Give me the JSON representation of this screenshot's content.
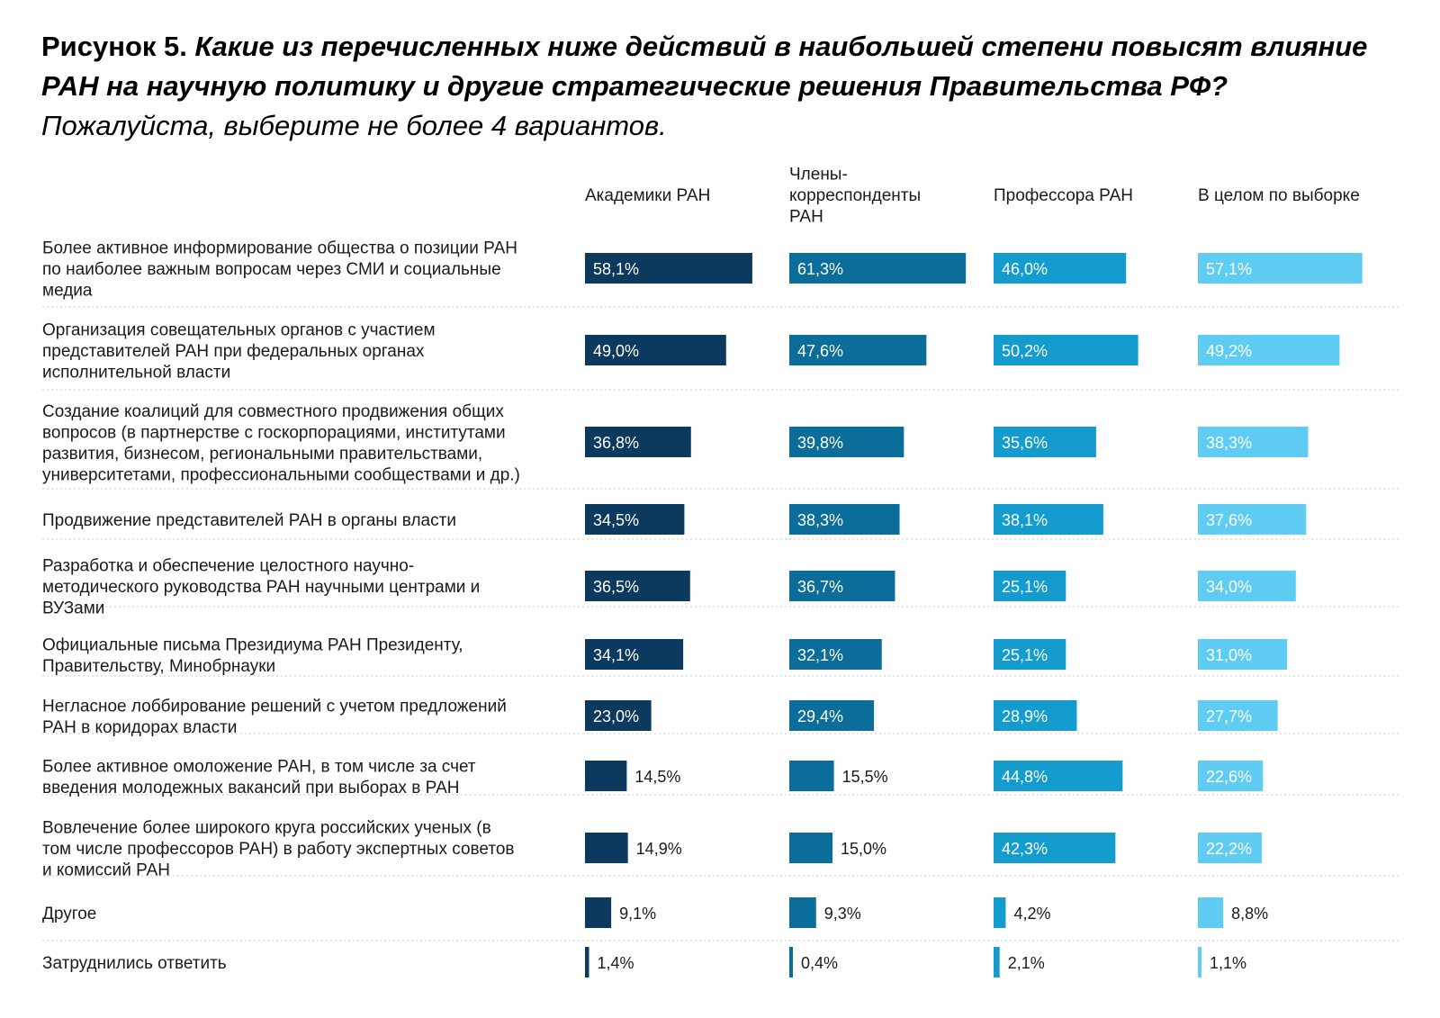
{
  "title": {
    "lead": "Рисунок 5.",
    "question": "Какие из перечисленных ниже действий в наибольшей степени повысят влияние РАН на научную политику и другие стратегические решения Правительства РФ?",
    "note": "Пожалуйста, выберите не более 4 вариантов."
  },
  "chart_data": {
    "type": "bar",
    "orientation": "horizontal-small-multiples",
    "unit": "%",
    "series": [
      {
        "name": "Академики РАН",
        "color": "#0b3a5e",
        "values": [
          58.1,
          49.0,
          36.8,
          34.5,
          36.5,
          34.1,
          23.0,
          14.5,
          14.9,
          9.1,
          1.4
        ]
      },
      {
        "name": "Члены-корреспонденты РАН",
        "color": "#0b6e9a",
        "values": [
          61.3,
          47.6,
          39.8,
          38.3,
          36.7,
          32.1,
          29.4,
          15.5,
          15.0,
          9.3,
          0.4
        ]
      },
      {
        "name": "Профессора РАН",
        "color": "#149ccf",
        "values": [
          46.0,
          50.2,
          35.6,
          38.1,
          25.1,
          25.1,
          28.9,
          44.8,
          42.3,
          4.2,
          2.1
        ]
      },
      {
        "name": "В целом по выборке",
        "color": "#5fcdf3",
        "values": [
          57.1,
          49.2,
          38.3,
          37.6,
          34.0,
          31.0,
          27.7,
          22.6,
          22.2,
          8.8,
          1.1
        ]
      }
    ],
    "value_labels": [
      [
        "58,1%",
        "49,0%",
        "36,8%",
        "34,5%",
        "36,5%",
        "34,1%",
        "23,0%",
        "14,5%",
        "14,9%",
        "9,1%",
        "1,4%"
      ],
      [
        "61,3%",
        "47,6%",
        "39,8%",
        "38,3%",
        "36,7%",
        "32,1%",
        "29,4%",
        "15,5%",
        "15,0%",
        "9,3%",
        "0,4%"
      ],
      [
        "46,0%",
        "50,2%",
        "35,6%",
        "38,1%",
        "25,1%",
        "25,1%",
        "28,9%",
        "44,8%",
        "42,3%",
        "4,2%",
        "2,1%"
      ],
      [
        "57,1%",
        "49,2%",
        "38,3%",
        "37,6%",
        "34,0%",
        "31,0%",
        "27,7%",
        "22,6%",
        "22,2%",
        "8,8%",
        "1,1%"
      ]
    ],
    "categories": [
      [
        "Более активное информирование общества о позиции РАН",
        "по наиболее важным вопросам через СМИ и социальные",
        "медиа"
      ],
      [
        "Организация совещательных органов с участием",
        "представителей РАН при федеральных органах",
        "исполнительной власти"
      ],
      [
        "Создание коалиций для совместного продвижения общих",
        "вопросов (в партнерстве с госкорпорациями, институтами",
        "развития, бизнесом, региональными правительствами,",
        "университетами, профессиональными сообществами и др.)"
      ],
      [
        "Продвижение представителей РАН в органы власти"
      ],
      [
        "Разработка и обеспечение целостного научно-",
        "методического руководства РАН научными центрами и",
        "ВУЗами"
      ],
      [
        "Официальные письма Президиума РАН Президенту,",
        "Правительству, Минобрнауки"
      ],
      [
        "Негласное лоббирование решений с учетом предложений",
        "РАН в коридорах власти"
      ],
      [
        "Более активное омоложение РАН, в том числе за счет",
        "введения молодежных вакансий при выборах в РАН"
      ],
      [
        "Вовлечение более широкого круга российских ученых (в",
        "том числе профессоров РАН) в работу экспертных советов",
        "и комиссий РАН"
      ],
      [
        "Другое"
      ],
      [
        "Затруднились ответить"
      ]
    ],
    "headers": [
      [
        "Академики РАН"
      ],
      [
        "Члены-",
        "корреспонденты",
        "РАН"
      ],
      [
        "Профессора РАН"
      ],
      [
        "В целом по выборке"
      ]
    ],
    "grid": false,
    "legend": "column headers"
  }
}
